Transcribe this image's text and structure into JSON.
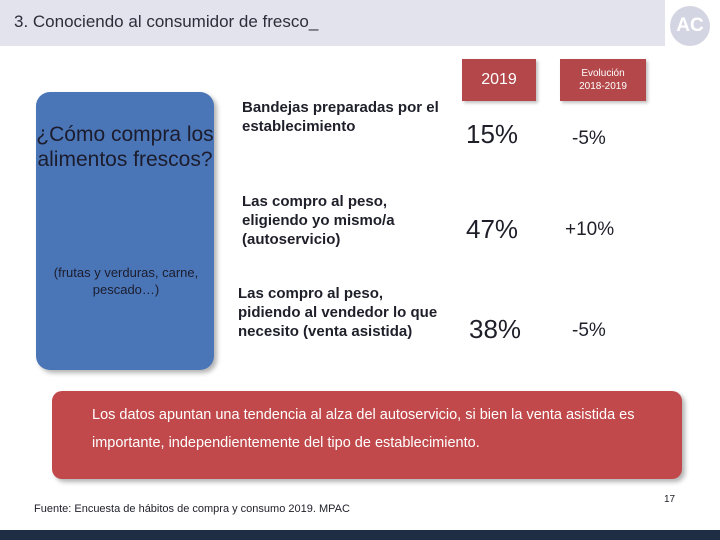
{
  "header": {
    "title": "3. Conociendo al consumidor de fresco_",
    "logo_text": "AC"
  },
  "columns": {
    "year": "2019",
    "evolution_line1": "Evolución",
    "evolution_line2": "2018-2019"
  },
  "panel": {
    "question": "¿Cómo compra los alimentos frescos?",
    "subtitle": "(frutas y verduras, carne, pescado…)"
  },
  "rows": [
    {
      "label": "Bandejas preparadas por el establecimiento",
      "value_2019": "15%",
      "evolution": "-5%"
    },
    {
      "label": "Las compro al peso, eligiendo yo mismo/a (autoservicio)",
      "value_2019": "47%",
      "evolution": "+10%"
    },
    {
      "label": "Las compro al peso, pidiendo al vendedor lo que necesito (venta asistida)",
      "value_2019": "38%",
      "evolution": "-5%"
    }
  ],
  "conclusion": "Los datos apuntan una tendencia al alza del autoservicio, si bien la venta asistida es importante, independientemente del tipo de establecimiento.",
  "source": "Fuente: Encuesta de hábitos de compra y consumo 2019. MPAC",
  "page_number": "17",
  "colors": {
    "accent_red": "#b3474a",
    "panel_blue": "#4a76b8",
    "bottom_bar": "#1e2d44"
  }
}
